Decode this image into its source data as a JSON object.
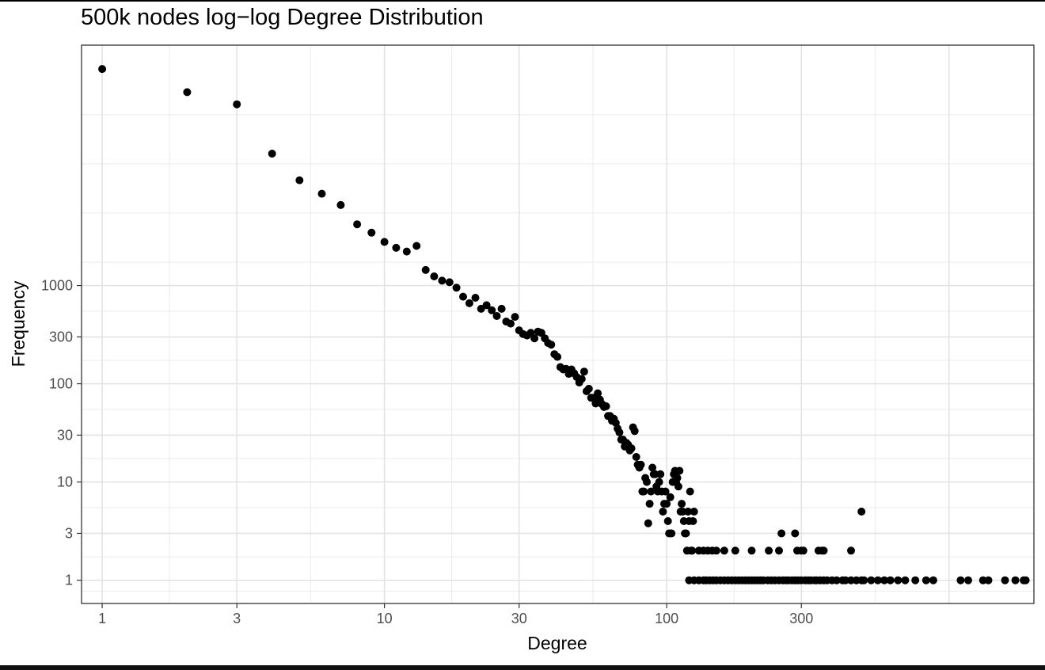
{
  "chart_data": {
    "type": "scatter",
    "title": "500k nodes log−log Degree Distribution",
    "xlabel": "Degree",
    "ylabel": "Frequency",
    "x_scale": "log10",
    "y_scale": "log10",
    "xlim": [
      0.845,
      2000
    ],
    "ylim": [
      0.58,
      280000
    ],
    "x_ticks": [
      1,
      3,
      10,
      30,
      100,
      300
    ],
    "x_tick_labels": [
      "1",
      "3",
      "10",
      "30",
      "100",
      "300"
    ],
    "y_ticks": [
      1,
      3,
      10,
      30,
      100,
      300,
      1000
    ],
    "y_tick_labels": [
      "1",
      "3",
      "10",
      "30",
      "100",
      "300",
      "1000"
    ],
    "grid": true,
    "marker_color": "#000000",
    "points": [
      [
        1,
        160000
      ],
      [
        2,
        93000
      ],
      [
        3,
        70000
      ],
      [
        4,
        22000
      ],
      [
        5,
        11800
      ],
      [
        6,
        8600
      ],
      [
        7,
        6600
      ],
      [
        8,
        4200
      ],
      [
        9,
        3450
      ],
      [
        10,
        2780
      ],
      [
        11,
        2420
      ],
      [
        12,
        2220
      ],
      [
        13,
        2530
      ],
      [
        14,
        1440
      ],
      [
        15,
        1240
      ],
      [
        16,
        1120
      ],
      [
        17,
        1080
      ],
      [
        18,
        950
      ],
      [
        19,
        770
      ],
      [
        20,
        660
      ],
      [
        21,
        750
      ],
      [
        22,
        580
      ],
      [
        23,
        630
      ],
      [
        24,
        560
      ],
      [
        25,
        490
      ],
      [
        26,
        580
      ],
      [
        27,
        430
      ],
      [
        28,
        410
      ],
      [
        29,
        480
      ],
      [
        30,
        350
      ],
      [
        31,
        320
      ],
      [
        32,
        310
      ],
      [
        33,
        330
      ],
      [
        34,
        290
      ],
      [
        35,
        340
      ],
      [
        36,
        330
      ],
      [
        37,
        290
      ],
      [
        38,
        260
      ],
      [
        39,
        250
      ],
      [
        40,
        200
      ],
      [
        41,
        188
      ],
      [
        42,
        148
      ],
      [
        43,
        140
      ],
      [
        44,
        142
      ],
      [
        45,
        126
      ],
      [
        46,
        140
      ],
      [
        47,
        128
      ],
      [
        48,
        117
      ],
      [
        49,
        103
      ],
      [
        50,
        112
      ],
      [
        51,
        133
      ],
      [
        52,
        84
      ],
      [
        53,
        89
      ],
      [
        54,
        72
      ],
      [
        55,
        72
      ],
      [
        56,
        63
      ],
      [
        57,
        80
      ],
      [
        58,
        69
      ],
      [
        59,
        62
      ],
      [
        60,
        58
      ],
      [
        61,
        59
      ],
      [
        62,
        47
      ],
      [
        63,
        47
      ],
      [
        64,
        42
      ],
      [
        65,
        44
      ],
      [
        66,
        40
      ],
      [
        67,
        35
      ],
      [
        68,
        32
      ],
      [
        69,
        27
      ],
      [
        70,
        27
      ],
      [
        71,
        23
      ],
      [
        72,
        25
      ],
      [
        73,
        24
      ],
      [
        74,
        21
      ],
      [
        75,
        22
      ],
      [
        76,
        36
      ],
      [
        77,
        33
      ],
      [
        78,
        18
      ],
      [
        79,
        15
      ],
      [
        80,
        14
      ],
      [
        81,
        15
      ],
      [
        82,
        8
      ],
      [
        83,
        8
      ],
      [
        84,
        11
      ],
      [
        85,
        10
      ],
      [
        86,
        3.8
      ],
      [
        87,
        6
      ],
      [
        88,
        8
      ],
      [
        89,
        14
      ],
      [
        90,
        12
      ],
      [
        91,
        12
      ],
      [
        92,
        9
      ],
      [
        93,
        8
      ],
      [
        94,
        10
      ],
      [
        95,
        12
      ],
      [
        96,
        8
      ],
      [
        97,
        5
      ],
      [
        98,
        6
      ],
      [
        99,
        8
      ],
      [
        100,
        6
      ],
      [
        101,
        4
      ],
      [
        102,
        3
      ],
      [
        103,
        7
      ],
      [
        104,
        3
      ],
      [
        105,
        10
      ],
      [
        106,
        12
      ],
      [
        107,
        13
      ],
      [
        108,
        10
      ],
      [
        109,
        11
      ],
      [
        110,
        9
      ],
      [
        111,
        13
      ],
      [
        112,
        5
      ],
      [
        113,
        6
      ],
      [
        114,
        5
      ],
      [
        115,
        4
      ],
      [
        116,
        3
      ],
      [
        117,
        3
      ],
      [
        118,
        2
      ],
      [
        119,
        5
      ],
      [
        120,
        4
      ],
      [
        121,
        8
      ],
      [
        122,
        2
      ],
      [
        123,
        2
      ],
      [
        124,
        4
      ],
      [
        125,
        5
      ],
      [
        130,
        2
      ],
      [
        135,
        2
      ],
      [
        140,
        2
      ],
      [
        145,
        2
      ],
      [
        150,
        2
      ],
      [
        160,
        2
      ],
      [
        175,
        2
      ],
      [
        200,
        2
      ],
      [
        230,
        2
      ],
      [
        250,
        2
      ],
      [
        255,
        3
      ],
      [
        285,
        3
      ],
      [
        290,
        2
      ],
      [
        300,
        2
      ],
      [
        305,
        2
      ],
      [
        345,
        2
      ],
      [
        355,
        2
      ],
      [
        360,
        2
      ],
      [
        450,
        2
      ],
      [
        490,
        5
      ],
      [
        120,
        1
      ],
      [
        125,
        1
      ],
      [
        130,
        1
      ],
      [
        135,
        1
      ],
      [
        138,
        1
      ],
      [
        142,
        1
      ],
      [
        146,
        1
      ],
      [
        150,
        1
      ],
      [
        155,
        1
      ],
      [
        160,
        1
      ],
      [
        165,
        1
      ],
      [
        170,
        1
      ],
      [
        175,
        1
      ],
      [
        180,
        1
      ],
      [
        185,
        1
      ],
      [
        190,
        1
      ],
      [
        195,
        1
      ],
      [
        200,
        1
      ],
      [
        205,
        1
      ],
      [
        210,
        1
      ],
      [
        215,
        1
      ],
      [
        220,
        1
      ],
      [
        228,
        1
      ],
      [
        235,
        1
      ],
      [
        242,
        1
      ],
      [
        250,
        1
      ],
      [
        258,
        1
      ],
      [
        265,
        1
      ],
      [
        270,
        1
      ],
      [
        278,
        1
      ],
      [
        285,
        1
      ],
      [
        292,
        1
      ],
      [
        300,
        1
      ],
      [
        310,
        1
      ],
      [
        318,
        1
      ],
      [
        325,
        1
      ],
      [
        335,
        1
      ],
      [
        340,
        1
      ],
      [
        350,
        1
      ],
      [
        360,
        1
      ],
      [
        370,
        1
      ],
      [
        385,
        1
      ],
      [
        400,
        1
      ],
      [
        420,
        1
      ],
      [
        430,
        1
      ],
      [
        450,
        1
      ],
      [
        470,
        1
      ],
      [
        490,
        1
      ],
      [
        500,
        1
      ],
      [
        530,
        1
      ],
      [
        560,
        1
      ],
      [
        590,
        1
      ],
      [
        620,
        1
      ],
      [
        660,
        1
      ],
      [
        700,
        1
      ],
      [
        760,
        1
      ],
      [
        830,
        1
      ],
      [
        880,
        1
      ],
      [
        1100,
        1
      ],
      [
        1170,
        1
      ],
      [
        1320,
        1
      ],
      [
        1380,
        1
      ],
      [
        1580,
        1
      ],
      [
        1720,
        1
      ],
      [
        1840,
        1
      ],
      [
        1870,
        1
      ]
    ]
  }
}
